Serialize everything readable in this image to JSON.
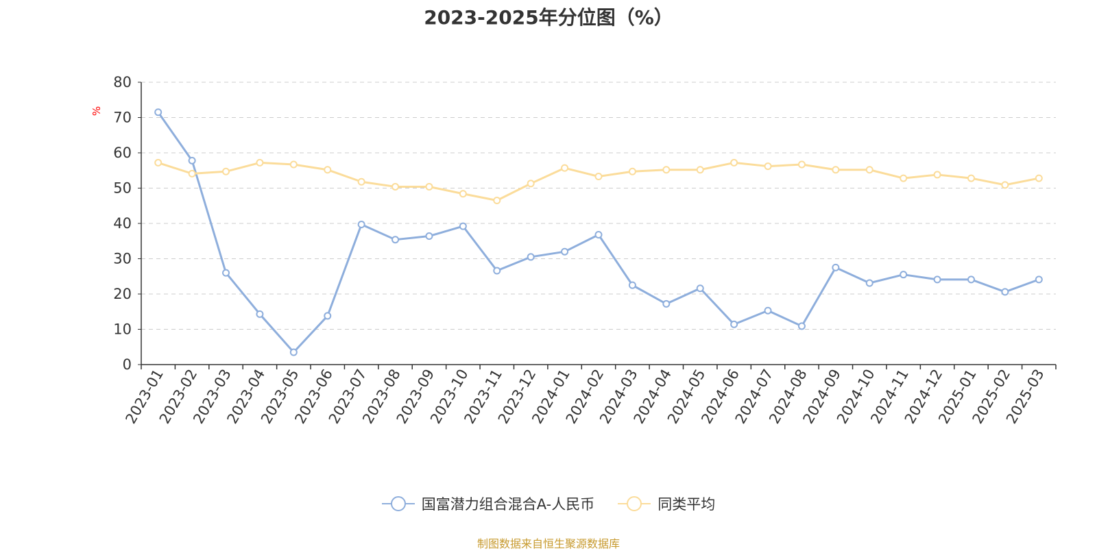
{
  "chart_data": {
    "type": "line",
    "title": "2023-2025年分位图（%）",
    "ylabel": "%",
    "ylim": [
      0,
      80
    ],
    "yticks": [
      "0",
      "10",
      "20",
      "30",
      "40",
      "50",
      "60",
      "70",
      "80"
    ],
    "grid": true,
    "legend_position": "bottom-center",
    "categories": [
      "2023-01",
      "2023-02",
      "2023-03",
      "2023-04",
      "2023-05",
      "2023-06",
      "2023-07",
      "2023-08",
      "2023-09",
      "2023-10",
      "2023-11",
      "2023-12",
      "2024-01",
      "2024-02",
      "2024-03",
      "2024-04",
      "2024-05",
      "2024-06",
      "2024-07",
      "2024-08",
      "2024-09",
      "2024-10",
      "2024-11",
      "2024-12",
      "2025-01",
      "2025-02",
      "2025-03"
    ],
    "series": [
      {
        "name": "国富潜力组合混合A-人民币",
        "color": "#8eaedc",
        "values": [
          71.5,
          57.8,
          26,
          14.3,
          3.5,
          13.8,
          39.7,
          35.4,
          36.4,
          39.2,
          26.6,
          30.5,
          32,
          36.8,
          22.5,
          17.2,
          21.6,
          11.4,
          15.3,
          10.9,
          27.5,
          23.1,
          25.5,
          24.1,
          24.1,
          20.6,
          24.1
        ]
      },
      {
        "name": "同类平均",
        "color": "#fbdc9a",
        "values": [
          57.2,
          54.1,
          54.7,
          57.2,
          56.7,
          55.2,
          51.8,
          50.4,
          50.4,
          48.4,
          46.5,
          51.3,
          55.7,
          53.3,
          54.7,
          55.2,
          55.2,
          57.2,
          56.2,
          56.7,
          55.2,
          55.2,
          52.8,
          53.8,
          52.8,
          50.9,
          52.8
        ]
      }
    ]
  },
  "source_text": "制图数据来自恒生聚源数据库"
}
